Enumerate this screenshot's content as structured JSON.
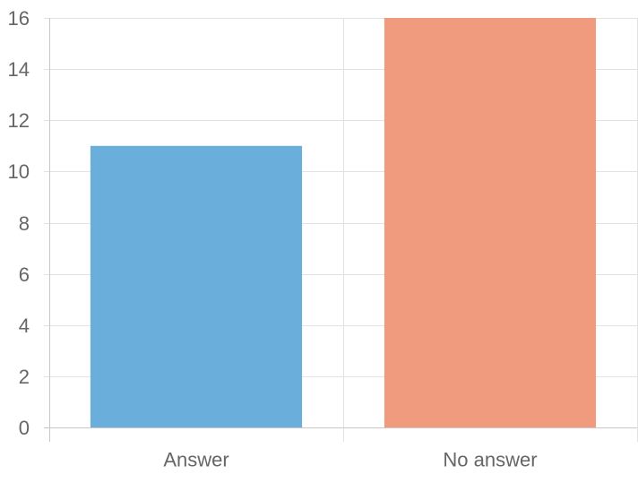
{
  "chart_data": {
    "type": "bar",
    "title": "",
    "xlabel": "",
    "ylabel": "",
    "categories": [
      "Answer",
      "No answer"
    ],
    "values": [
      11,
      16
    ],
    "colors": [
      "#6aaedb",
      "#f09a7e"
    ],
    "ylim": [
      0,
      16
    ],
    "yticks": [
      0,
      2,
      4,
      6,
      8,
      10,
      12,
      14,
      16
    ],
    "grid": true,
    "legend": "none"
  }
}
